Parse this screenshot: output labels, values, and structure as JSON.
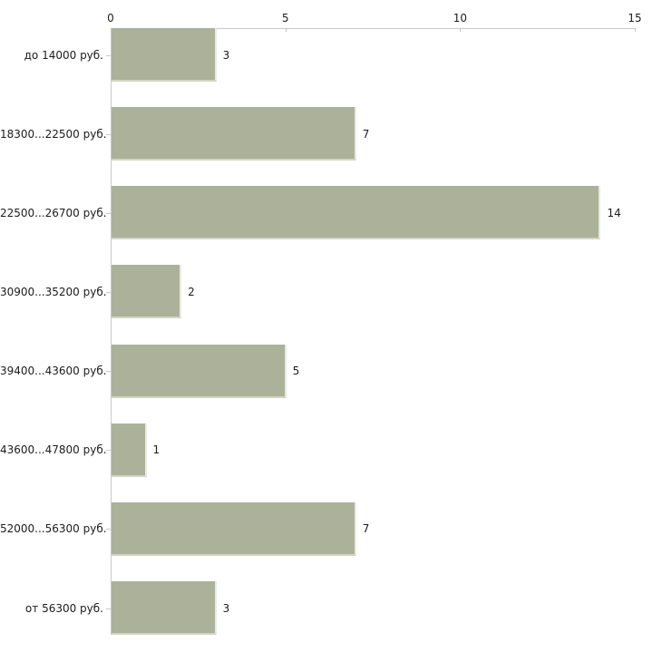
{
  "chart_data": {
    "type": "bar",
    "orientation": "horizontal",
    "title": "",
    "xlabel": "",
    "ylabel": "",
    "categories": [
      "до 14000 руб.",
      "18300...22500 руб.",
      "22500...26700 руб.",
      "30900...35200 руб.",
      "39400...43600 руб.",
      "43600...47800 руб.",
      "52000...56300 руб.",
      "от 56300 руб."
    ],
    "values": [
      3,
      7,
      14,
      2,
      5,
      1,
      7,
      3
    ],
    "value_labels": [
      "3",
      "7",
      "14",
      "2",
      "5",
      "1",
      "7",
      "3"
    ],
    "xlim": [
      0,
      15
    ],
    "x_ticks": [
      0,
      5,
      10,
      15
    ],
    "x_tick_labels": [
      "0",
      "5",
      "10",
      "15"
    ],
    "axis_position": "top",
    "grid": false,
    "legend": false,
    "colors": {
      "bar": "#acb199",
      "bar_edge": "#d2d5c3",
      "axis_line": "#c9c9c9",
      "tick_mark": "#c2c6b2",
      "text": "#1c1c1c",
      "background": "#ffffff"
    }
  }
}
